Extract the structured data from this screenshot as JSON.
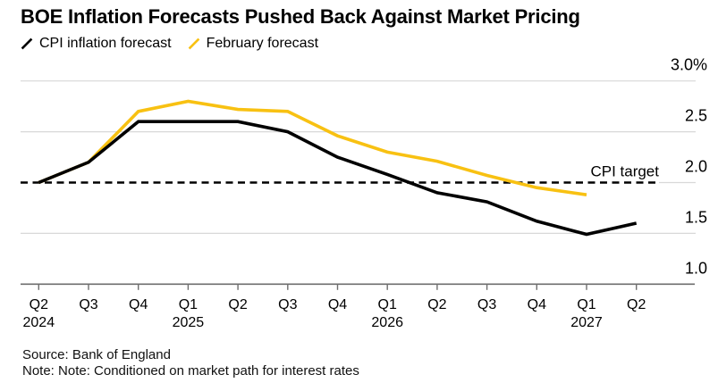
{
  "title": "BOE Inflation Forecasts Pushed Back Against Market Pricing",
  "legend": {
    "items": [
      {
        "label": "CPI inflation forecast",
        "color": "#000000"
      },
      {
        "label": "February forecast",
        "color": "#F8C112"
      }
    ]
  },
  "footer": {
    "source": "Source: Bank of England",
    "note": "Note: Note: Conditioned on market path for interest rates"
  },
  "chart_data": {
    "type": "line",
    "title": "BOE Inflation Forecasts Pushed Back Against Market Pricing",
    "categories": [
      {
        "q": "Q2",
        "year": "2024"
      },
      {
        "q": "Q3"
      },
      {
        "q": "Q4"
      },
      {
        "q": "Q1",
        "year": "2025"
      },
      {
        "q": "Q2"
      },
      {
        "q": "Q3"
      },
      {
        "q": "Q4"
      },
      {
        "q": "Q1",
        "year": "2026"
      },
      {
        "q": "Q2"
      },
      {
        "q": "Q3"
      },
      {
        "q": "Q4"
      },
      {
        "q": "Q1",
        "year": "2027"
      },
      {
        "q": "Q2"
      }
    ],
    "series": [
      {
        "name": "CPI inflation forecast",
        "color": "#000000",
        "values": [
          2.0,
          2.2,
          2.6,
          2.6,
          2.6,
          2.5,
          2.25,
          2.08,
          1.9,
          1.81,
          1.62,
          1.49,
          1.6
        ]
      },
      {
        "name": "February forecast",
        "color": "#F8C112",
        "values": [
          2.0,
          2.2,
          2.7,
          2.8,
          2.72,
          2.7,
          2.46,
          2.3,
          2.21,
          2.07,
          1.95,
          1.88
        ]
      }
    ],
    "y_axis": {
      "ticks": [
        {
          "value": 3.0,
          "label": "3.0%"
        },
        {
          "value": 2.5,
          "label": "2.5"
        },
        {
          "value": 2.0,
          "label": "2.0"
        },
        {
          "value": 1.5,
          "label": "1.5"
        },
        {
          "value": 1.0,
          "label": "1.0"
        }
      ]
    },
    "ylim": [
      1.0,
      3.0
    ],
    "target": {
      "value": 2.0,
      "label": "CPI target"
    },
    "grid": true,
    "legend_position": "top",
    "colors": {
      "grid": "#d8d8d8",
      "axis": "#6e6e6e",
      "text": "#000000"
    }
  }
}
